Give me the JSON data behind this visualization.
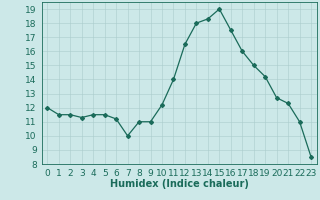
{
  "x": [
    0,
    1,
    2,
    3,
    4,
    5,
    6,
    7,
    8,
    9,
    10,
    11,
    12,
    13,
    14,
    15,
    16,
    17,
    18,
    19,
    20,
    21,
    22,
    23
  ],
  "y": [
    12.0,
    11.5,
    11.5,
    11.3,
    11.5,
    11.5,
    11.2,
    10.0,
    11.0,
    11.0,
    12.2,
    14.0,
    16.5,
    18.0,
    18.3,
    19.0,
    17.5,
    16.0,
    15.0,
    14.2,
    12.7,
    12.3,
    11.0,
    8.5
  ],
  "line_color": "#1a6b5a",
  "marker": "D",
  "marker_size": 2,
  "bg_color": "#cce8e8",
  "grid_color": "#aacccc",
  "xlabel": "Humidex (Indice chaleur)",
  "xlim": [
    -0.5,
    23.5
  ],
  "ylim": [
    8,
    19.5
  ],
  "yticks": [
    8,
    9,
    10,
    11,
    12,
    13,
    14,
    15,
    16,
    17,
    18,
    19
  ],
  "xticks": [
    0,
    1,
    2,
    3,
    4,
    5,
    6,
    7,
    8,
    9,
    10,
    11,
    12,
    13,
    14,
    15,
    16,
    17,
    18,
    19,
    20,
    21,
    22,
    23
  ],
  "tick_color": "#1a6b5a",
  "label_color": "#1a6b5a",
  "xlabel_fontsize": 7,
  "tick_fontsize": 6.5
}
